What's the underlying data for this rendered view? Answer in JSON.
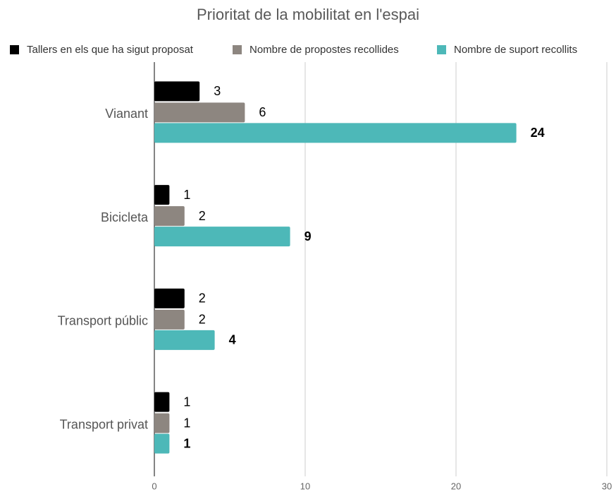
{
  "chart_data": {
    "type": "bar",
    "horizontal": true,
    "title": "Prioritat de la mobilitat en l'espai",
    "categories": [
      "Vianant",
      "Bicicleta",
      "Transport públic",
      "Transport privat"
    ],
    "series": [
      {
        "name": "Tallers en els que ha sigut proposat",
        "color": "#000000",
        "values": [
          3,
          1,
          2,
          1
        ]
      },
      {
        "name": "Nombre de propostes recollides",
        "color": "#8d8680",
        "values": [
          6,
          2,
          2,
          1
        ]
      },
      {
        "name": "Nombre de suport recollits",
        "color": "#4db8b8",
        "values": [
          24,
          9,
          4,
          1
        ],
        "bold_labels": true
      }
    ],
    "xlim": [
      0,
      30
    ],
    "xticks": [
      0,
      10,
      20,
      30
    ],
    "grid": true,
    "legend": "top"
  }
}
